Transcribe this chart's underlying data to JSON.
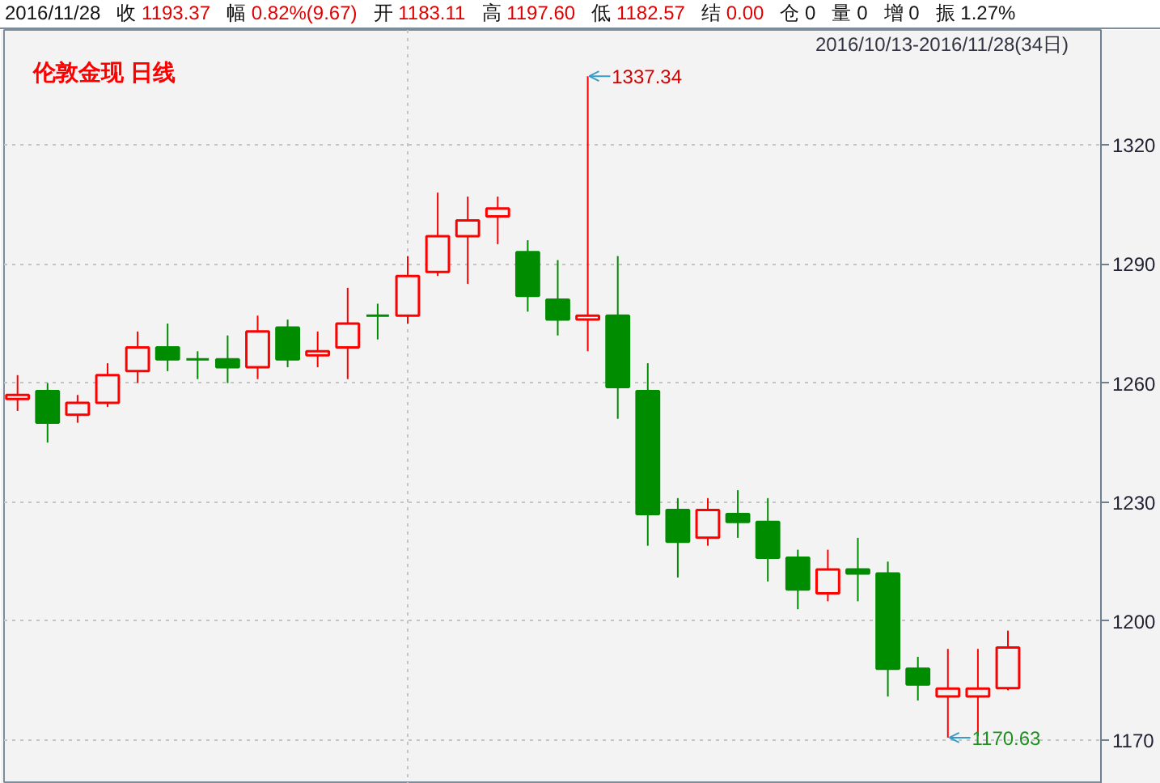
{
  "chart_data": {
    "type": "candlestick",
    "title": "伦敦金现 日线",
    "subtitle": "2016/10/13-2016/11/28(34日)",
    "categories": [
      null,
      null,
      null,
      null,
      null,
      null,
      null,
      null,
      null,
      null,
      null,
      null,
      null,
      null,
      null,
      null,
      null,
      null,
      null,
      null,
      null,
      null,
      null,
      null,
      null,
      null,
      null,
      null,
      null,
      null,
      null,
      null,
      null,
      null
    ],
    "ohlc": [
      [
        1256,
        1262,
        1253,
        1257
      ],
      [
        1258,
        1260,
        1245,
        1250
      ],
      [
        1252,
        1257,
        1250,
        1255
      ],
      [
        1255,
        1265,
        1254,
        1262
      ],
      [
        1263,
        1273,
        1260,
        1269
      ],
      [
        1269,
        1275,
        1263,
        1266
      ],
      [
        1266,
        1268,
        1261,
        1266
      ],
      [
        1266,
        1272,
        1260,
        1264
      ],
      [
        1264,
        1277,
        1261,
        1273
      ],
      [
        1274,
        1276,
        1264,
        1266
      ],
      [
        1267,
        1273,
        1264,
        1268
      ],
      [
        1269,
        1284,
        1261,
        1275
      ],
      [
        1277,
        1280,
        1271,
        1277
      ],
      [
        1277,
        1292,
        1275,
        1287
      ],
      [
        1288,
        1308,
        1287,
        1297
      ],
      [
        1297,
        1307,
        1285,
        1301
      ],
      [
        1302,
        1307,
        1295,
        1304
      ],
      [
        1293,
        1296,
        1278,
        1282
      ],
      [
        1281,
        1291,
        1272,
        1276
      ],
      [
        1276,
        1337.34,
        1268,
        1277
      ],
      [
        1277,
        1292,
        1251,
        1259
      ],
      [
        1258,
        1265,
        1219,
        1227
      ],
      [
        1228,
        1231,
        1211,
        1220
      ],
      [
        1221,
        1231,
        1219,
        1228
      ],
      [
        1227,
        1233,
        1221,
        1225
      ],
      [
        1225,
        1231,
        1210,
        1216
      ],
      [
        1216,
        1218,
        1203,
        1208
      ],
      [
        1207,
        1218,
        1205,
        1213
      ],
      [
        1213,
        1221,
        1205,
        1212
      ],
      [
        1212,
        1215,
        1181,
        1188
      ],
      [
        1188,
        1191,
        1180,
        1184
      ],
      [
        1181,
        1193,
        1170.63,
        1183
      ],
      [
        1181,
        1193,
        1171,
        1183
      ],
      [
        1183.11,
        1197.6,
        1182.57,
        1193.37
      ]
    ],
    "colors": [
      "#ff0000",
      "#008c00",
      "#ff0000",
      "#ff0000",
      "#ff0000",
      "#008c00",
      "#008c00",
      "#008c00",
      "#ff0000",
      "#008c00",
      "#ff0000",
      "#ff0000",
      "#008c00",
      "#ff0000",
      "#ff0000",
      "#ff0000",
      "#ff0000",
      "#008c00",
      "#008c00",
      "#ff0000",
      "#008c00",
      "#008c00",
      "#008c00",
      "#ff0000",
      "#008c00",
      "#008c00",
      "#008c00",
      "#ff0000",
      "#008c00",
      "#008c00",
      "#008c00",
      "#ff0000",
      "#ff0000",
      "#ff0000"
    ],
    "ylim": [
      1159,
      1349
    ],
    "yticks": [
      1170,
      1200,
      1230,
      1260,
      1290,
      1320
    ],
    "grid": "y",
    "tick_labels": "y",
    "annotations": [
      "2016/11/28",
      "收 1193.37",
      "幅 0.82%(9.67)",
      "开 1183.11",
      "高 1197.60",
      "低 1182.57",
      "结 0.00",
      "仓 0",
      "量 0",
      "增 0",
      "振 1.27%",
      "1337.34",
      "1170.63"
    ]
  }
}
